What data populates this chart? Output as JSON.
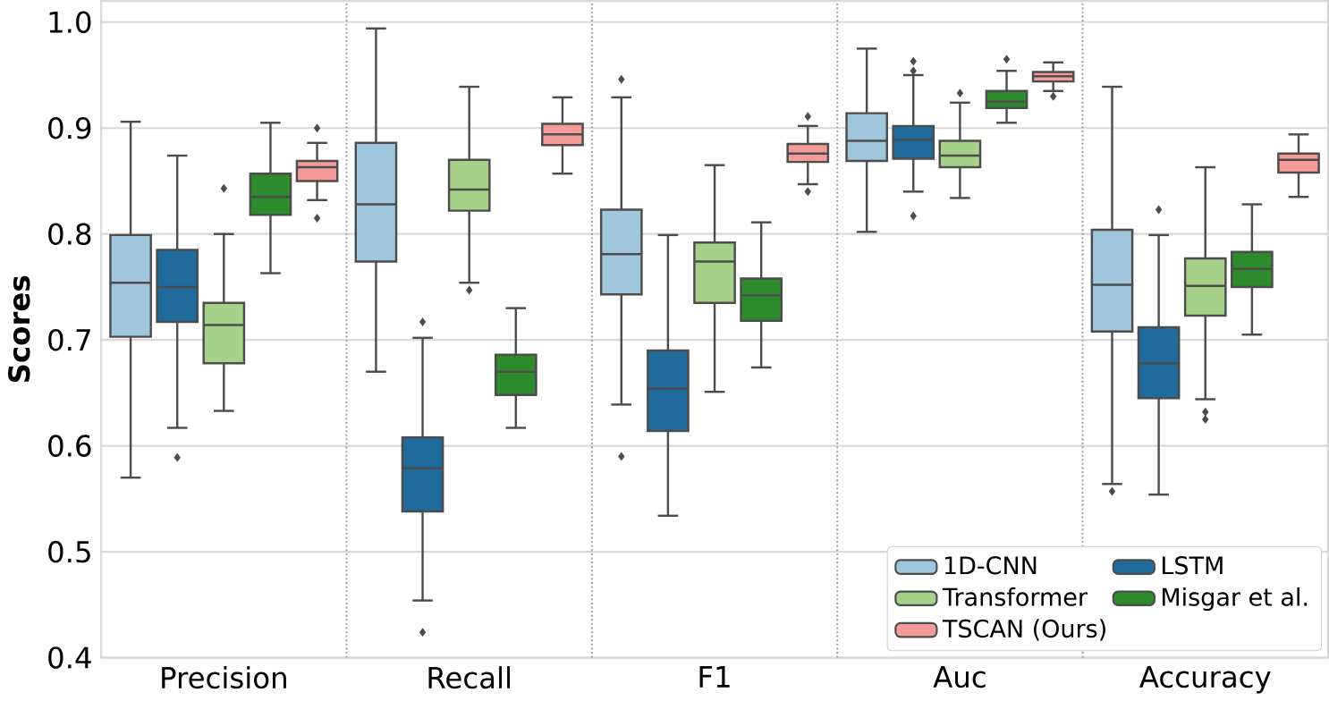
{
  "chart_data": {
    "type": "box",
    "ylabel": "Scores",
    "categories": [
      "Precision",
      "Recall",
      "F1",
      "Auc",
      "Accuracy"
    ],
    "ylim": [
      0.4,
      1.02
    ],
    "yticks": [
      0.4,
      0.5,
      0.6,
      0.7,
      0.8,
      0.9,
      {
        "value": 1.0,
        "label": "1.0"
      }
    ],
    "grid": true,
    "legend": "bottom right",
    "series": [
      {
        "name": "1D-CNN",
        "color": "#9fc6da",
        "boxes": [
          {
            "low": 0.57,
            "q1": 0.703,
            "median": 0.754,
            "q3": 0.799,
            "high": 0.906
          },
          {
            "low": 0.67,
            "q1": 0.774,
            "median": 0.828,
            "q3": 0.886,
            "high": 0.994
          },
          {
            "low": 0.639,
            "q1": 0.743,
            "median": 0.781,
            "q3": 0.823,
            "high": 0.929,
            "outliers": [
              0.946,
              0.59
            ]
          },
          {
            "low": 0.802,
            "q1": 0.869,
            "median": 0.888,
            "q3": 0.914,
            "high": 0.975
          },
          {
            "low": 0.564,
            "q1": 0.708,
            "median": 0.752,
            "q3": 0.804,
            "high": 0.939,
            "outliers": [
              0.557
            ]
          }
        ]
      },
      {
        "name": "LSTM",
        "color": "#1f6b9c",
        "boxes": [
          {
            "low": 0.617,
            "q1": 0.717,
            "median": 0.75,
            "q3": 0.785,
            "high": 0.874,
            "outliers": [
              0.589
            ]
          },
          {
            "low": 0.454,
            "q1": 0.538,
            "median": 0.579,
            "q3": 0.608,
            "high": 0.702,
            "outliers": [
              0.717,
              0.424
            ]
          },
          {
            "low": 0.534,
            "q1": 0.614,
            "median": 0.654,
            "q3": 0.69,
            "high": 0.799
          },
          {
            "low": 0.84,
            "q1": 0.871,
            "median": 0.889,
            "q3": 0.902,
            "high": 0.95,
            "outliers": [
              0.963,
              0.954,
              0.817
            ]
          },
          {
            "low": 0.554,
            "q1": 0.645,
            "median": 0.678,
            "q3": 0.712,
            "high": 0.799,
            "outliers": [
              0.823
            ]
          }
        ]
      },
      {
        "name": "Transformer",
        "color": "#a7d18a",
        "boxes": [
          {
            "low": 0.633,
            "q1": 0.678,
            "median": 0.714,
            "q3": 0.735,
            "high": 0.8,
            "outliers": [
              0.843
            ]
          },
          {
            "low": 0.754,
            "q1": 0.822,
            "median": 0.842,
            "q3": 0.87,
            "high": 0.939,
            "outliers": [
              0.747
            ]
          },
          {
            "low": 0.651,
            "q1": 0.735,
            "median": 0.774,
            "q3": 0.792,
            "high": 0.865
          },
          {
            "low": 0.834,
            "q1": 0.863,
            "median": 0.874,
            "q3": 0.888,
            "high": 0.924,
            "outliers": [
              0.933
            ]
          },
          {
            "low": 0.644,
            "q1": 0.723,
            "median": 0.751,
            "q3": 0.777,
            "high": 0.863,
            "outliers": [
              0.632,
              0.625
            ]
          }
        ]
      },
      {
        "name": "Misgar et al.",
        "color": "#2d8a2d",
        "boxes": [
          {
            "low": 0.763,
            "q1": 0.818,
            "median": 0.835,
            "q3": 0.857,
            "high": 0.905
          },
          {
            "low": 0.617,
            "q1": 0.648,
            "median": 0.67,
            "q3": 0.686,
            "high": 0.73
          },
          {
            "low": 0.674,
            "q1": 0.718,
            "median": 0.742,
            "q3": 0.758,
            "high": 0.811
          },
          {
            "low": 0.905,
            "q1": 0.919,
            "median": 0.925,
            "q3": 0.935,
            "high": 0.954,
            "outliers": [
              0.965
            ]
          },
          {
            "low": 0.705,
            "q1": 0.75,
            "median": 0.767,
            "q3": 0.783,
            "high": 0.828
          }
        ]
      },
      {
        "name": "TSCAN (Ours)",
        "color": "#f49b9a",
        "boxes": [
          {
            "low": 0.832,
            "q1": 0.85,
            "median": 0.863,
            "q3": 0.869,
            "high": 0.886,
            "outliers": [
              0.9,
              0.815
            ]
          },
          {
            "low": 0.857,
            "q1": 0.884,
            "median": 0.894,
            "q3": 0.904,
            "high": 0.929
          },
          {
            "low": 0.847,
            "q1": 0.868,
            "median": 0.876,
            "q3": 0.885,
            "high": 0.902,
            "outliers": [
              0.911,
              0.84
            ]
          },
          {
            "low": 0.935,
            "q1": 0.944,
            "median": 0.949,
            "q3": 0.953,
            "high": 0.962,
            "outliers": [
              0.93
            ]
          },
          {
            "low": 0.835,
            "q1": 0.858,
            "median": 0.87,
            "q3": 0.876,
            "high": 0.894
          }
        ]
      }
    ]
  }
}
